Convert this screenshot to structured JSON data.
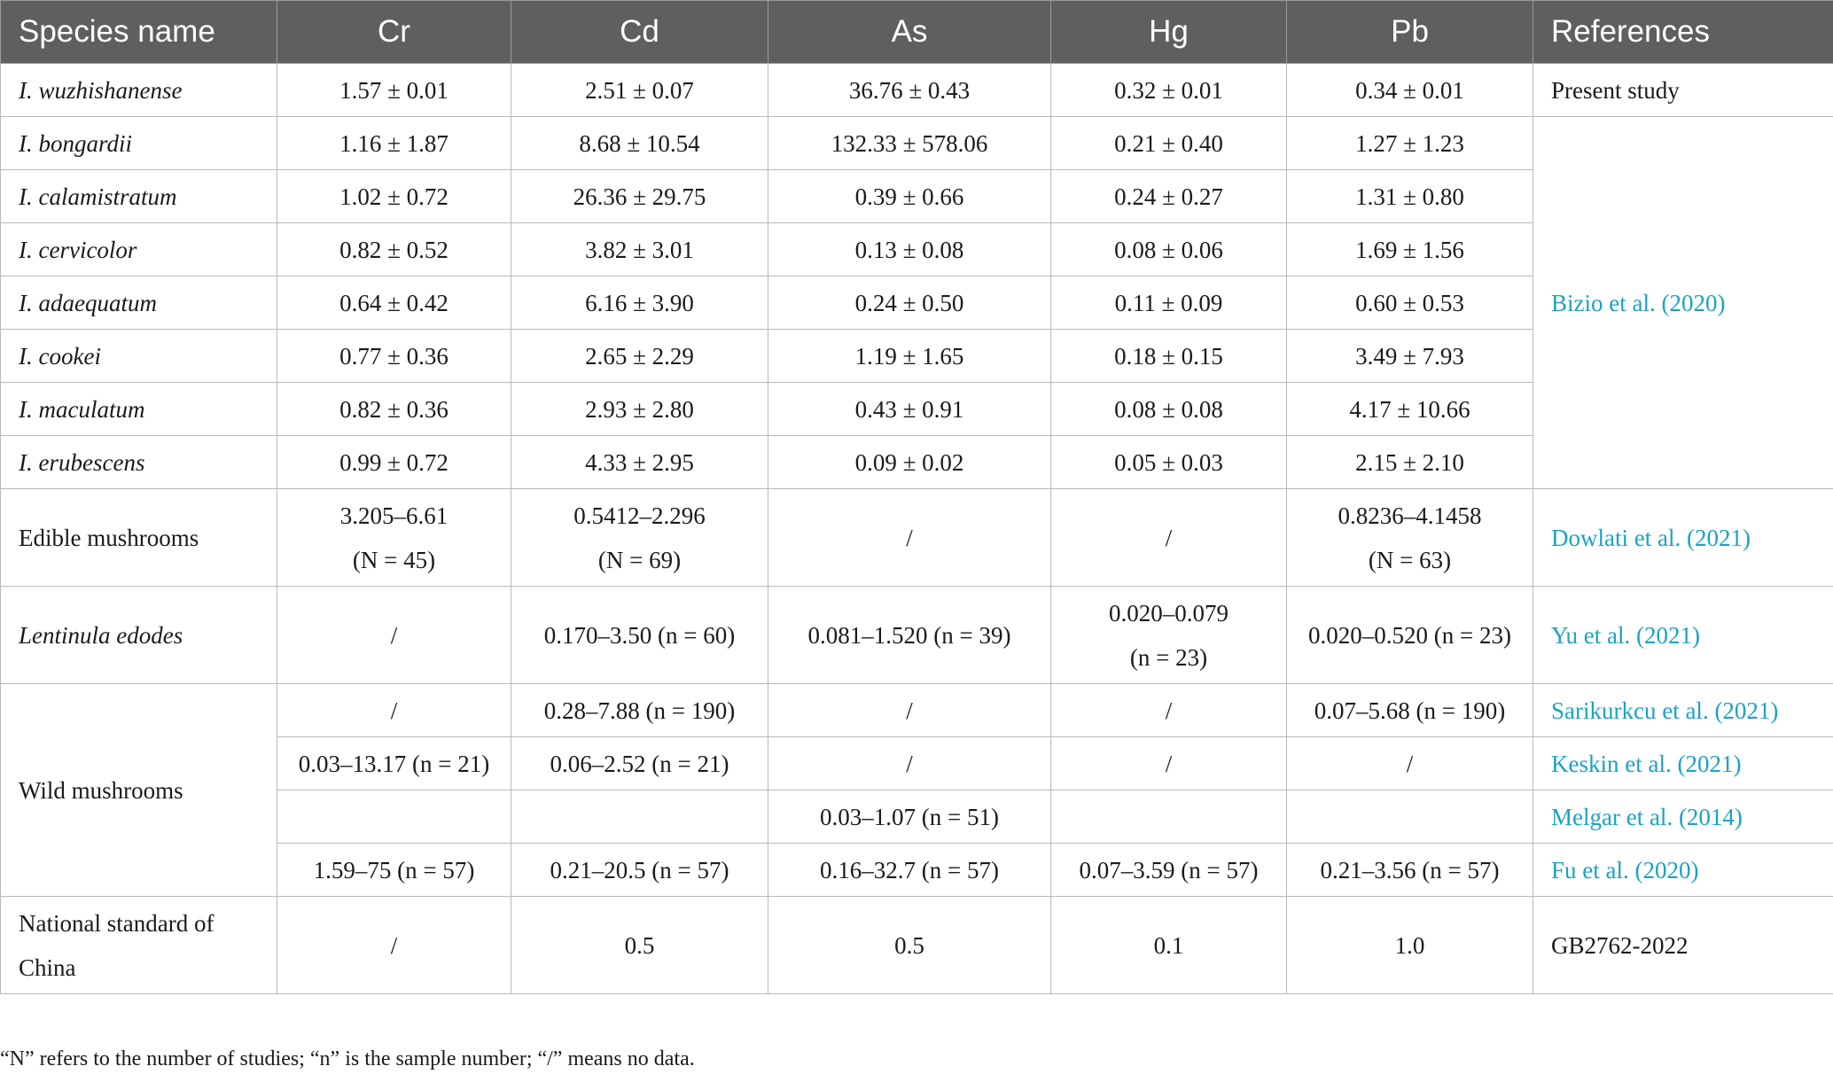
{
  "table": {
    "headers": [
      "Species name",
      "Cr",
      "Cd",
      "As",
      "Hg",
      "Pb",
      "References"
    ],
    "rows": [
      {
        "species": "I. wuzhishanense",
        "cr": "1.57 ± 0.01",
        "cd": "2.51 ± 0.07",
        "as": "36.76 ± 0.43",
        "hg": "0.32 ± 0.01",
        "pb": "0.34 ± 0.01",
        "ref": "Present study"
      },
      {
        "species": "I. bongardii",
        "cr": "1.16 ± 1.87",
        "cd": "8.68 ± 10.54",
        "as": "132.33 ± 578.06",
        "hg": "0.21 ± 0.40",
        "pb": "1.27 ± 1.23"
      },
      {
        "species": "I. calamistratum",
        "cr": "1.02 ± 0.72",
        "cd": "26.36 ± 29.75",
        "as": "0.39 ± 0.66",
        "hg": "0.24 ± 0.27",
        "pb": "1.31 ± 0.80"
      },
      {
        "species": "I. cervicolor",
        "cr": "0.82 ± 0.52",
        "cd": "3.82 ± 3.01",
        "as": "0.13 ± 0.08",
        "hg": "0.08 ± 0.06",
        "pb": "1.69 ± 1.56"
      },
      {
        "species": "I. adaequatum",
        "cr": "0.64 ± 0.42",
        "cd": "6.16 ± 3.90",
        "as": "0.24 ± 0.50",
        "hg": "0.11 ± 0.09",
        "pb": "0.60 ± 0.53",
        "ref": "Bizio et al. (2020)"
      },
      {
        "species": "I. cookei",
        "cr": "0.77 ± 0.36",
        "cd": "2.65 ± 2.29",
        "as": "1.19 ± 1.65",
        "hg": "0.18 ± 0.15",
        "pb": "3.49 ± 7.93"
      },
      {
        "species": "I. maculatum",
        "cr": "0.82 ± 0.36",
        "cd": "2.93 ± 2.80",
        "as": "0.43 ± 0.91",
        "hg": "0.08 ± 0.08",
        "pb": "4.17 ± 10.66"
      },
      {
        "species": "I. erubescens",
        "cr": "0.99 ± 0.72",
        "cd": "4.33 ± 2.95",
        "as": "0.09 ± 0.02",
        "hg": "0.05 ± 0.03",
        "pb": "2.15 ± 2.10"
      },
      {
        "species": "Edible mushrooms",
        "cr": "3.205–6.61",
        "cr_n": "(N = 45)",
        "cd": "0.5412–2.296",
        "cd_n": "(N = 69)",
        "as": "/",
        "hg": "/",
        "pb": "0.8236–4.1458",
        "pb_n": "(N = 63)",
        "ref": "Dowlati et al. (2021)"
      },
      {
        "species": "Lentinula edodes",
        "cr": "/",
        "cd": "0.170–3.50 (n = 60)",
        "as": "0.081–1.520 (n = 39)",
        "hg": "0.020–0.079",
        "hg_n": "(n = 23)",
        "pb": "0.020–0.520 (n = 23)",
        "ref": "Yu et al. (2021)"
      },
      {
        "species": "Wild mushrooms",
        "cr": "/",
        "cd": "0.28–7.88 (n = 190)",
        "as": "/",
        "hg": "/",
        "pb": "0.07–5.68 (n = 190)",
        "ref": "Sarikurkcu et al. (2021)"
      },
      {
        "cr": "0.03–13.17 (n = 21)",
        "cd": "0.06–2.52 (n = 21)",
        "as": "/",
        "hg": "/",
        "pb": "/",
        "ref": "Keskin et al. (2021)"
      },
      {
        "cr": "",
        "cd": "",
        "as": "0.03–1.07 (n = 51)",
        "hg": "",
        "pb": "",
        "ref": "Melgar et al. (2014)"
      },
      {
        "cr": "1.59–75 (n = 57)",
        "cd": "0.21–20.5 (n = 57)",
        "as": "0.16–32.7 (n = 57)",
        "hg": "0.07–3.59 (n = 57)",
        "pb": "0.21–3.56 (n = 57)",
        "ref": "Fu et al. (2020)"
      },
      {
        "species_l1": "National standard of",
        "species_l2": "China",
        "cr": "/",
        "cd": "0.5",
        "as": "0.5",
        "hg": "0.1",
        "pb": "1.0",
        "ref": "GB2762-2022"
      }
    ]
  },
  "footnote": "“N” refers to the number of studies; “n” is the sample number; “/” means no data."
}
